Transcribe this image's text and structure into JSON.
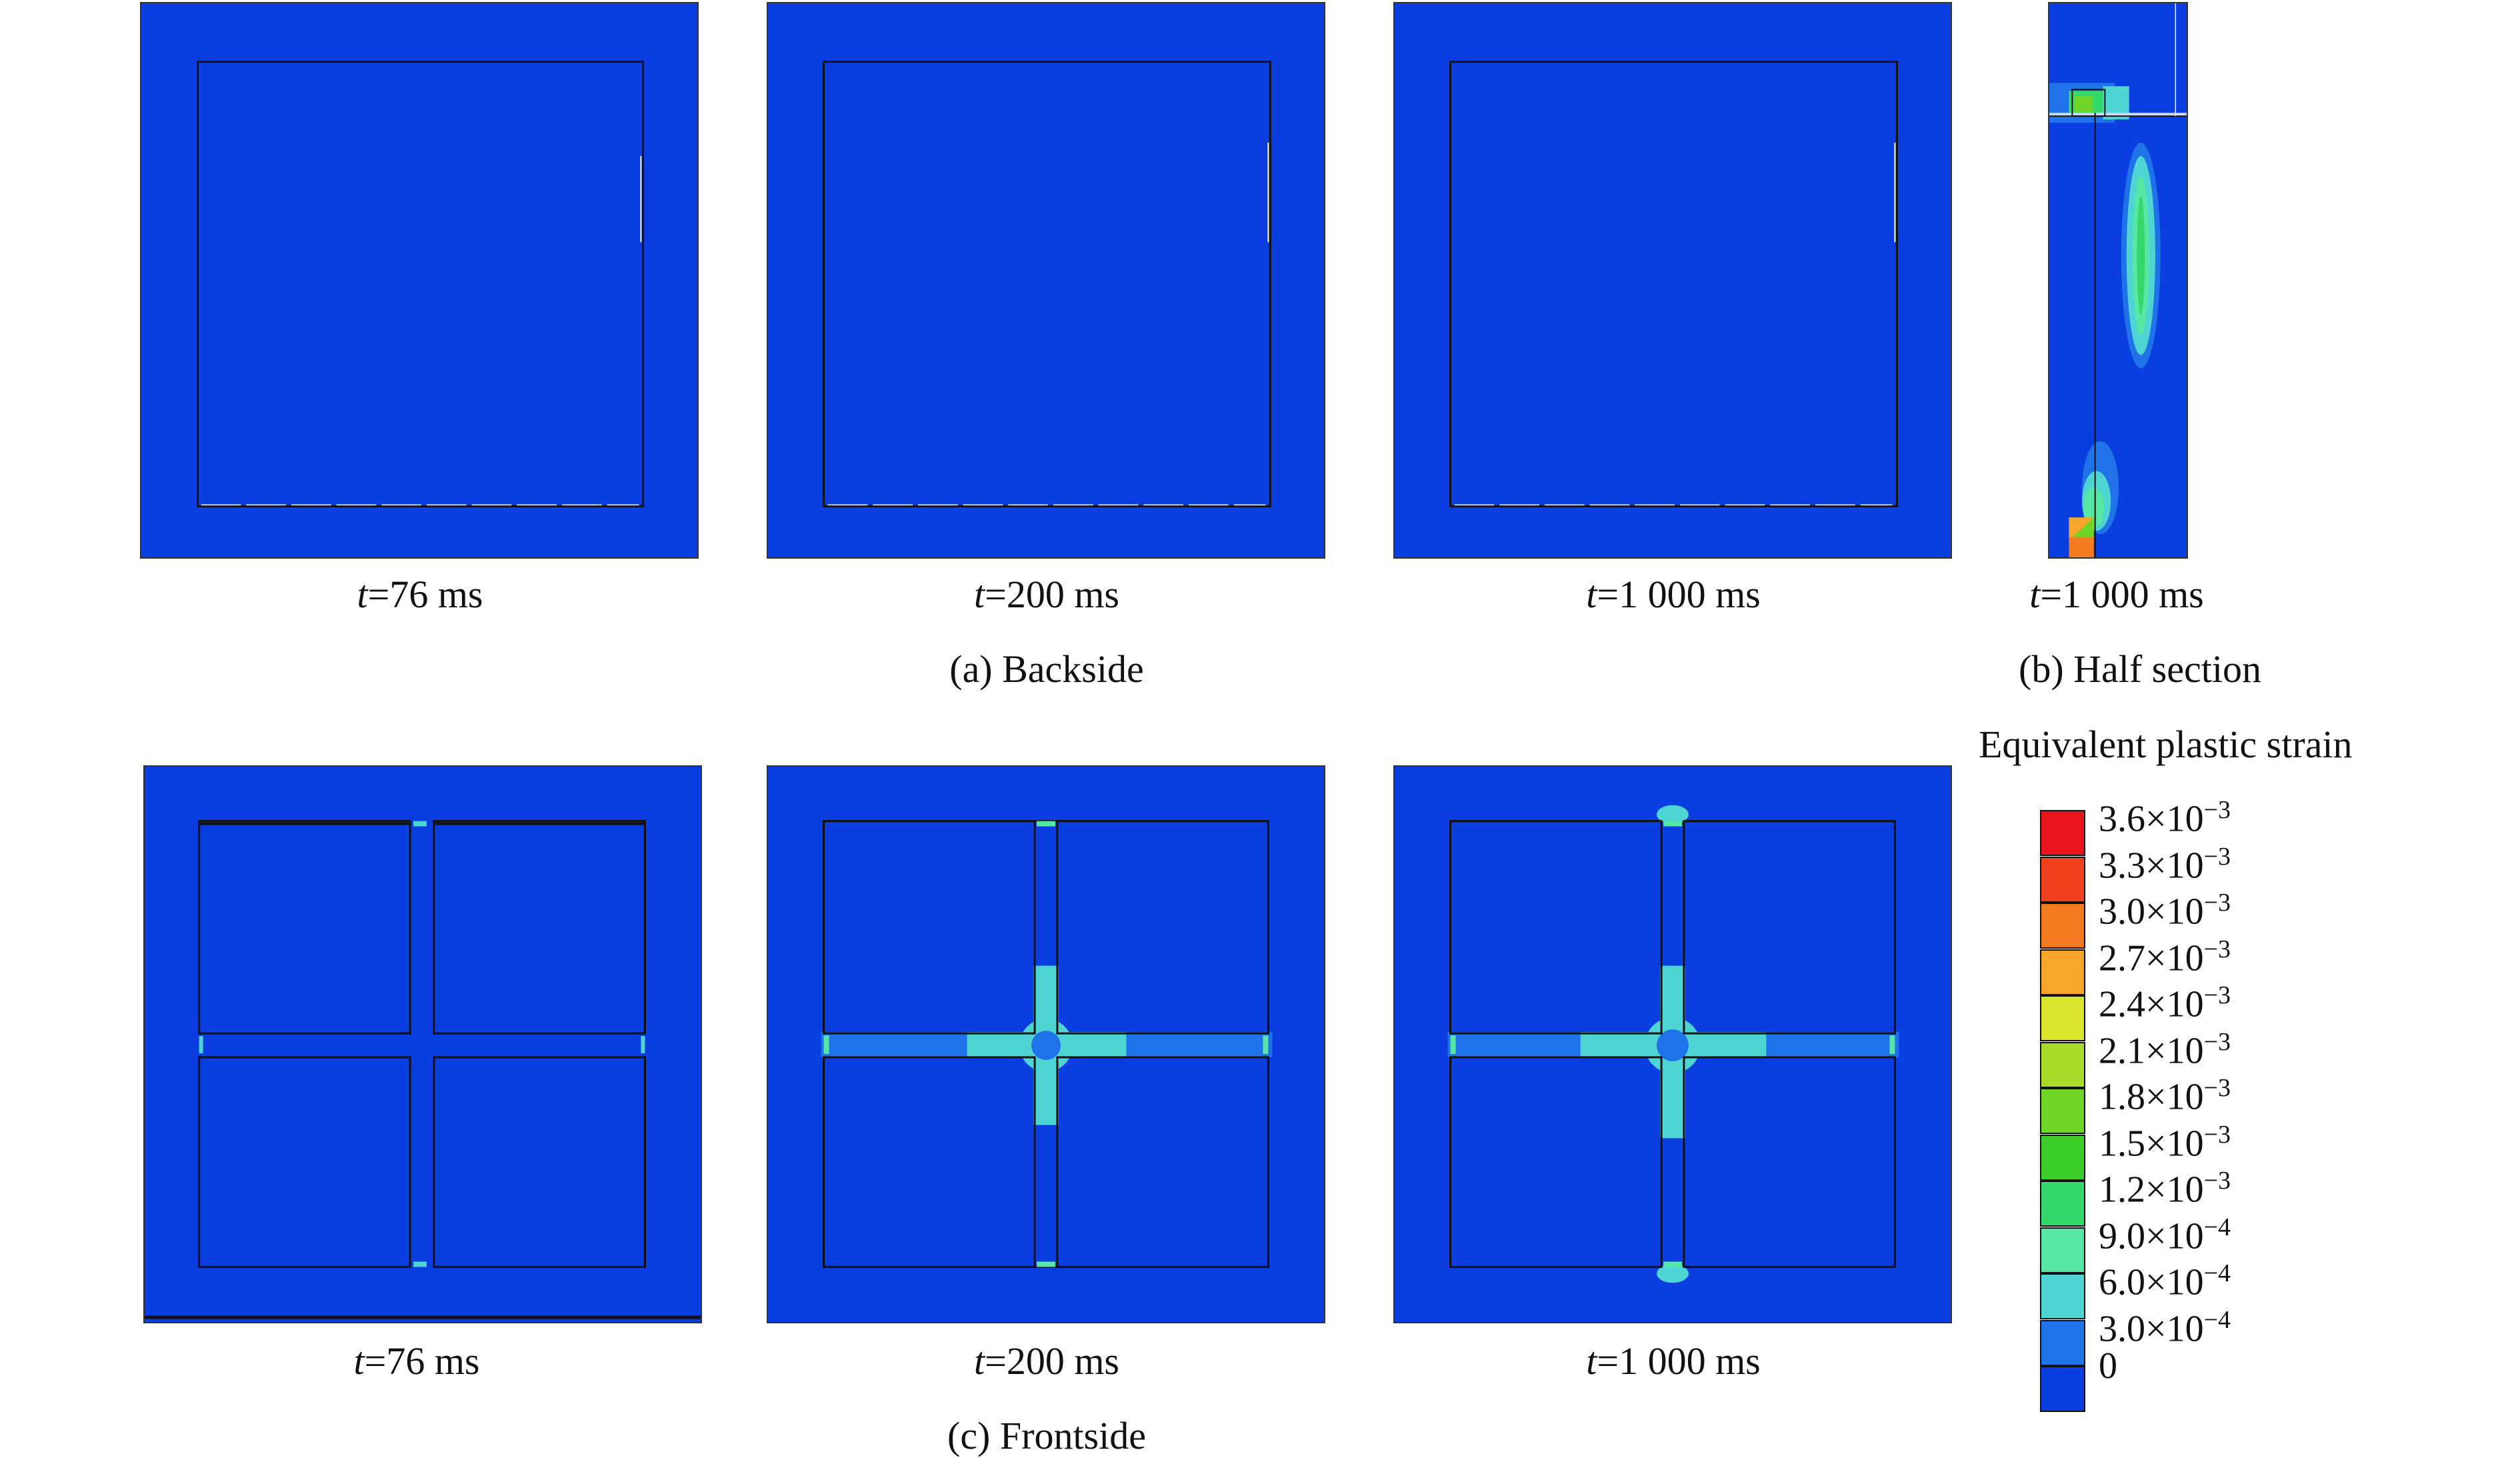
{
  "time_labels": {
    "a1": "=76 ms",
    "a2": "=200 ms",
    "a3": "=1 000 ms",
    "b1": "=1 000 ms",
    "c1": "=76 ms",
    "c2": "=200 ms",
    "c3": "=1 000 ms",
    "var": "t"
  },
  "subtitles": {
    "a": "(a) Backside",
    "b": "(b) Half section",
    "c": "(c) Frontside"
  },
  "legend": {
    "title": "Equivalent plastic strain",
    "levels": [
      {
        "mantissa": "3.6×10",
        "exp": "−3",
        "color": "#e8141b"
      },
      {
        "mantissa": "3.3×10",
        "exp": "−3",
        "color": "#f0401c"
      },
      {
        "mantissa": "3.0×10",
        "exp": "−3",
        "color": "#f47a22"
      },
      {
        "mantissa": "2.7×10",
        "exp": "−3",
        "color": "#f6a62a"
      },
      {
        "mantissa": "2.4×10",
        "exp": "−3",
        "color": "#d8e52c"
      },
      {
        "mantissa": "2.1×10",
        "exp": "−3",
        "color": "#a8dc2a"
      },
      {
        "mantissa": "1.8×10",
        "exp": "−3",
        "color": "#6ed426"
      },
      {
        "mantissa": "1.5×10",
        "exp": "−3",
        "color": "#3ccd2b"
      },
      {
        "mantissa": "1.2×10",
        "exp": "−3",
        "color": "#35d86a"
      },
      {
        "mantissa": "9.0×10",
        "exp": "−4",
        "color": "#56e6a6"
      },
      {
        "mantissa": "6.0×10",
        "exp": "−4",
        "color": "#4fd4d4"
      },
      {
        "mantissa": "3.0×10",
        "exp": "−4",
        "color": "#1f72e8"
      },
      {
        "mantissa": "0",
        "exp": "",
        "color": "#0a3ee0"
      }
    ]
  }
}
